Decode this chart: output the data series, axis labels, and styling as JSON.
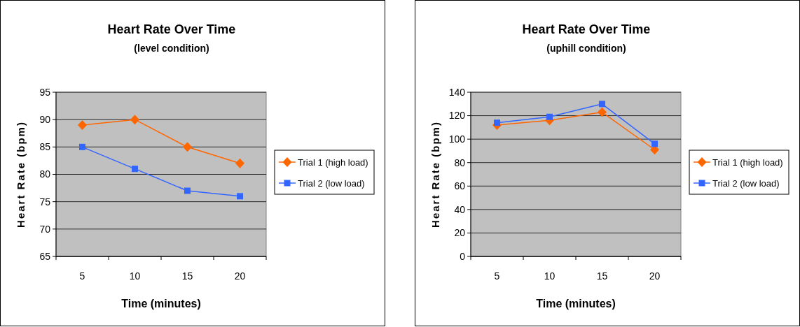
{
  "chart_data": [
    {
      "type": "line",
      "title": "Heart Rate Over Time",
      "subtitle": "(level condition)",
      "xlabel": "Time (minutes)",
      "ylabel": "Heart Rate (bpm)",
      "categories": [
        "5",
        "10",
        "15",
        "20"
      ],
      "ylim": [
        65,
        95
      ],
      "yticks": [
        65,
        70,
        75,
        80,
        85,
        90,
        95
      ],
      "grid": "y",
      "legend": "right",
      "series": [
        {
          "name": "Trial 1 (high load)",
          "color": "#ff6600",
          "marker": "diamond",
          "values": [
            89,
            90,
            85,
            82
          ]
        },
        {
          "name": "Trial 2 (low load)",
          "color": "#3366ff",
          "marker": "square",
          "values": [
            85,
            81,
            77,
            76
          ]
        }
      ]
    },
    {
      "type": "line",
      "title": "Heart Rate Over Time",
      "subtitle": "(uphill condition)",
      "xlabel": "Time (minutes)",
      "ylabel": "Heart Rate (bpm)",
      "categories": [
        "5",
        "10",
        "15",
        "20"
      ],
      "ylim": [
        0,
        140
      ],
      "yticks": [
        0,
        20,
        40,
        60,
        80,
        100,
        120,
        140
      ],
      "grid": "y",
      "legend": "right",
      "series": [
        {
          "name": "Trial 1 (high load)",
          "color": "#ff6600",
          "marker": "diamond",
          "values": [
            112,
            116,
            123,
            91
          ]
        },
        {
          "name": "Trial 2 (low load)",
          "color": "#3366ff",
          "marker": "square",
          "values": [
            114,
            119,
            130,
            96
          ]
        }
      ]
    }
  ]
}
